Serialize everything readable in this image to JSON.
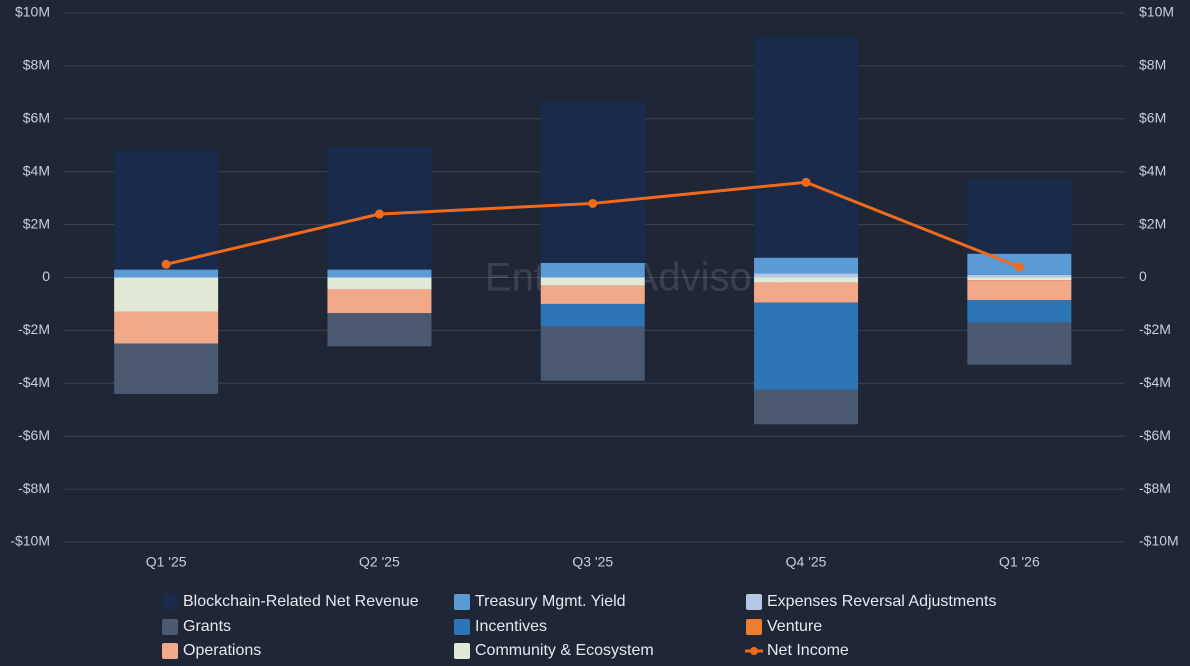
{
  "chart_data": {
    "type": "bar",
    "stacked": true,
    "watermark": "Entropy Advisors",
    "categories": [
      "Q1 '25",
      "Q2 '25",
      "Q3 '25",
      "Q4 '25",
      "Q1 '26"
    ],
    "series": [
      {
        "name": "Expenses Reversal Adjustments",
        "color": "#b4c7e7",
        "values": [
          0,
          0,
          0,
          0.15,
          0.1
        ]
      },
      {
        "name": "Treasury Mgmt. Yield",
        "color": "#5b9bd5",
        "values": [
          0.3,
          0.3,
          0.55,
          0.6,
          0.8
        ]
      },
      {
        "name": "Blockchain-Related Net Revenue",
        "color": "#192a4b",
        "values": [
          4.5,
          4.65,
          6.1,
          8.35,
          2.8
        ]
      },
      {
        "name": "Community & Ecosystem",
        "color": "#e1e9d6",
        "values": [
          -1.3,
          -0.45,
          -0.3,
          -0.2,
          -0.1
        ]
      },
      {
        "name": "Operations",
        "color": "#f2a98a",
        "values": [
          -1.2,
          -0.9,
          -0.7,
          -0.75,
          -0.75
        ]
      },
      {
        "name": "Incentives",
        "color": "#2e75b6",
        "values": [
          0,
          0,
          -0.85,
          -3.3,
          -0.85
        ]
      },
      {
        "name": "Grants",
        "color": "#4b5a70",
        "values": [
          -1.9,
          -1.25,
          -2.05,
          -1.3,
          -1.6
        ]
      },
      {
        "name": "Venture",
        "color": "#ed7d31",
        "values": [
          0,
          0,
          0,
          0,
          0
        ]
      },
      {
        "name": "Net Income",
        "type": "line",
        "axis": "y2",
        "color": "#f26b1d",
        "values": [
          0.5,
          2.4,
          2.8,
          3.6,
          0.4
        ]
      }
    ],
    "ylim": [
      -10,
      10
    ],
    "yticks": [
      {
        "value": -10,
        "label": "-$10M"
      },
      {
        "value": -8,
        "label": "-$8M"
      },
      {
        "value": -6,
        "label": "-$6M"
      },
      {
        "value": -4,
        "label": "-$4M"
      },
      {
        "value": -2,
        "label": "-$2M"
      },
      0,
      {
        "value": 2,
        "label": "$2M"
      },
      {
        "value": 4,
        "label": "$4M"
      },
      {
        "value": 6,
        "label": "$6M"
      },
      {
        "value": 8,
        "label": "$8M"
      },
      {
        "value": 10,
        "label": "$10M"
      }
    ],
    "y2lim": [
      -10,
      10
    ],
    "y2ticks": [
      {
        "value": -10,
        "label": "-$10M"
      },
      {
        "value": -8,
        "label": "-$8M"
      },
      {
        "value": -6,
        "label": "-$6M"
      },
      {
        "value": -4,
        "label": "-$4M"
      },
      {
        "value": -2,
        "label": "-$2M"
      },
      0,
      {
        "value": 2,
        "label": "$2M"
      },
      {
        "value": 4,
        "label": "$4M"
      },
      {
        "value": 6,
        "label": "$6M"
      },
      {
        "value": 8,
        "label": "$8M"
      },
      {
        "value": 10,
        "label": "$10M"
      }
    ],
    "grid": true,
    "legend": "bottom"
  }
}
